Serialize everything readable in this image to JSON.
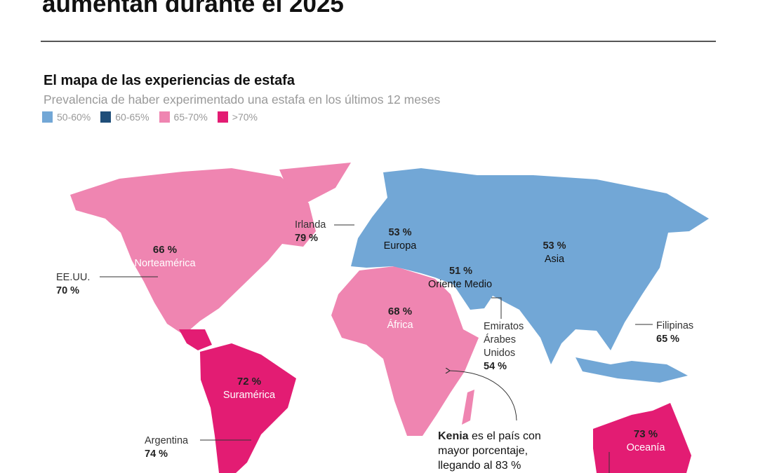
{
  "header": {
    "title": "aumentan durante el 2025"
  },
  "chart": {
    "subtitle": "El mapa de las experiencias de estafa",
    "description": "Prevalencia de haber experimentado una estafa en los últimos 12 meses"
  },
  "legend": [
    {
      "label": "50-60%",
      "color": "#72a7d6"
    },
    {
      "label": "60-65%",
      "color": "#1f4e79"
    },
    {
      "label": "65-70%",
      "color": "#ef85b1"
    },
    {
      "label": ">70%",
      "color": "#e31c73"
    }
  ],
  "regions": {
    "norteamerica": {
      "value": "66 %",
      "name": "Norteamérica",
      "color": "#ef85b1"
    },
    "suramerica": {
      "value": "72 %",
      "name": "Suramérica",
      "color": "#e31c73"
    },
    "europa": {
      "value": "53 %",
      "name": "Europa",
      "color": "#72a7d6"
    },
    "asia": {
      "value": "53 %",
      "name": "Asia",
      "color": "#72a7d6"
    },
    "oriente": {
      "value": "51 %",
      "name": "Oriente Medio",
      "color": "#72a7d6"
    },
    "africa": {
      "value": "68 %",
      "name": "África",
      "color": "#ef85b1"
    },
    "oceania": {
      "value": "73 %",
      "name": "Oceanía",
      "color": "#e31c73"
    }
  },
  "countries": {
    "irlanda": {
      "name": "Irlanda",
      "value": "79 %"
    },
    "eeuu": {
      "name": "EE.UU.",
      "value": "70 %"
    },
    "emiratos": {
      "name": "Emiratos Árabes Unidos",
      "value": "54 %"
    },
    "filipinas": {
      "name": "Filipinas",
      "value": "65 %"
    },
    "argentina": {
      "name": "Argentina",
      "value": "74 %"
    }
  },
  "note": {
    "bold": "Kenia",
    "text": " es el país con mayor porcentaje, llegando al 83 %"
  }
}
